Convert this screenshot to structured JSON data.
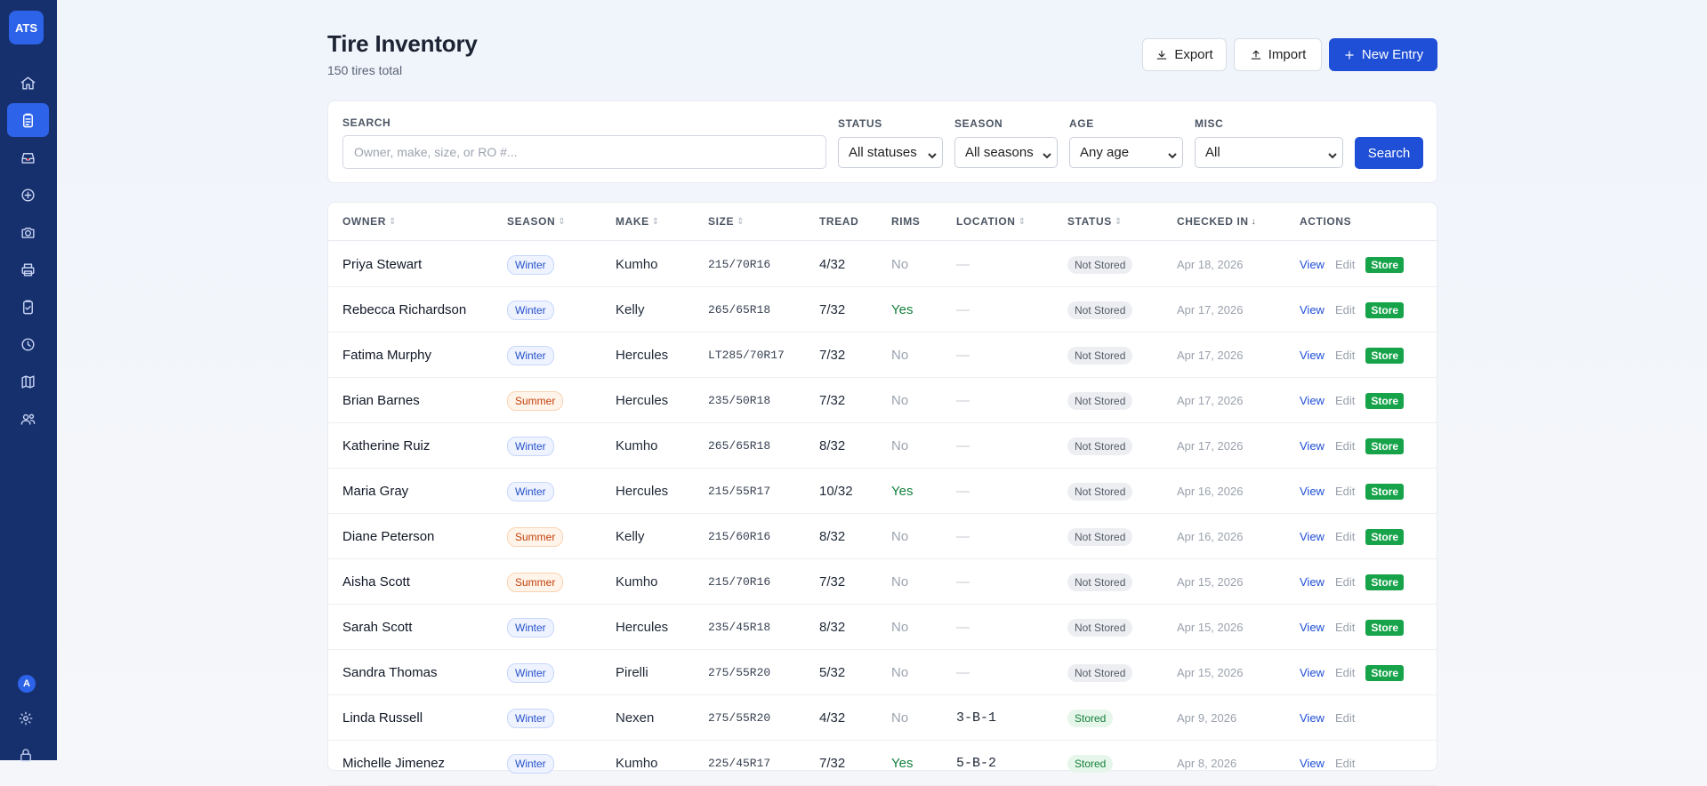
{
  "sidebar": {
    "logo": "ATS",
    "items": [
      {
        "icon": "home-icon",
        "label": "home"
      },
      {
        "icon": "clipboard-icon",
        "label": "tire-inventory",
        "active": true
      },
      {
        "icon": "inbox-icon",
        "label": "inbox"
      },
      {
        "icon": "plus-circle-icon",
        "label": "new"
      },
      {
        "icon": "camera-icon",
        "label": "camera"
      },
      {
        "icon": "printer-icon",
        "label": "print"
      },
      {
        "icon": "clipboard-check-icon",
        "label": "checklist"
      },
      {
        "icon": "clock-icon",
        "label": "history"
      },
      {
        "icon": "map-icon",
        "label": "map"
      },
      {
        "icon": "users-icon",
        "label": "users"
      }
    ],
    "user_initial": "A"
  },
  "header": {
    "title": "Tire Inventory",
    "subtitle": "150 tires total",
    "export_label": "Export",
    "import_label": "Import",
    "new_entry_label": "New Entry"
  },
  "filters": {
    "search_label": "SEARCH",
    "search_placeholder": "Owner, make, size, or RO #...",
    "status_label": "STATUS",
    "status_value": "All statuses",
    "season_label": "SEASON",
    "season_value": "All seasons",
    "age_label": "AGE",
    "age_value": "Any age",
    "misc_label": "MISC",
    "misc_value": "All",
    "search_button": "Search"
  },
  "table": {
    "columns": [
      "OWNER",
      "SEASON",
      "MAKE",
      "SIZE",
      "TREAD",
      "RIMS",
      "LOCATION",
      "STATUS",
      "CHECKED IN",
      "ACTIONS"
    ],
    "actions": {
      "view": "View",
      "edit": "Edit",
      "store": "Store"
    },
    "rows": [
      {
        "owner": "Priya Stewart",
        "season": "Winter",
        "make": "Kumho",
        "size": "215/70R16",
        "tread": "4/32",
        "rims": "No",
        "location": "—",
        "status": "Not Stored",
        "checked_in": "Apr 18, 2026"
      },
      {
        "owner": "Rebecca Richardson",
        "season": "Winter",
        "make": "Kelly",
        "size": "265/65R18",
        "tread": "7/32",
        "rims": "Yes",
        "location": "—",
        "status": "Not Stored",
        "checked_in": "Apr 17, 2026"
      },
      {
        "owner": "Fatima Murphy",
        "season": "Winter",
        "make": "Hercules",
        "size": "LT285/70R17",
        "tread": "7/32",
        "rims": "No",
        "location": "—",
        "status": "Not Stored",
        "checked_in": "Apr 17, 2026"
      },
      {
        "owner": "Brian Barnes",
        "season": "Summer",
        "make": "Hercules",
        "size": "235/50R18",
        "tread": "7/32",
        "rims": "No",
        "location": "—",
        "status": "Not Stored",
        "checked_in": "Apr 17, 2026"
      },
      {
        "owner": "Katherine Ruiz",
        "season": "Winter",
        "make": "Kumho",
        "size": "265/65R18",
        "tread": "8/32",
        "rims": "No",
        "location": "—",
        "status": "Not Stored",
        "checked_in": "Apr 17, 2026"
      },
      {
        "owner": "Maria Gray",
        "season": "Winter",
        "make": "Hercules",
        "size": "215/55R17",
        "tread": "10/32",
        "rims": "Yes",
        "location": "—",
        "status": "Not Stored",
        "checked_in": "Apr 16, 2026"
      },
      {
        "owner": "Diane Peterson",
        "season": "Summer",
        "make": "Kelly",
        "size": "215/60R16",
        "tread": "8/32",
        "rims": "No",
        "location": "—",
        "status": "Not Stored",
        "checked_in": "Apr 16, 2026"
      },
      {
        "owner": "Aisha Scott",
        "season": "Summer",
        "make": "Kumho",
        "size": "215/70R16",
        "tread": "7/32",
        "rims": "No",
        "location": "—",
        "status": "Not Stored",
        "checked_in": "Apr 15, 2026"
      },
      {
        "owner": "Sarah Scott",
        "season": "Winter",
        "make": "Hercules",
        "size": "235/45R18",
        "tread": "8/32",
        "rims": "No",
        "location": "—",
        "status": "Not Stored",
        "checked_in": "Apr 15, 2026"
      },
      {
        "owner": "Sandra Thomas",
        "season": "Winter",
        "make": "Pirelli",
        "size": "275/55R20",
        "tread": "5/32",
        "rims": "No",
        "location": "—",
        "status": "Not Stored",
        "checked_in": "Apr 15, 2026"
      },
      {
        "owner": "Linda Russell",
        "season": "Winter",
        "make": "Nexen",
        "size": "275/55R20",
        "tread": "4/32",
        "rims": "No",
        "location": "3-B-1",
        "status": "Stored",
        "checked_in": "Apr 9, 2026"
      },
      {
        "owner": "Michelle Jimenez",
        "season": "Winter",
        "make": "Kumho",
        "size": "225/45R17",
        "tread": "7/32",
        "rims": "Yes",
        "location": "5-B-2",
        "status": "Stored",
        "checked_in": "Apr 8, 2026"
      }
    ]
  }
}
